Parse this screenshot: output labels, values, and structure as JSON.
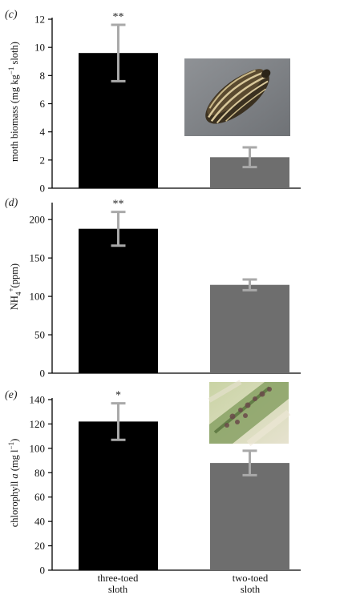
{
  "chart_data": [
    {
      "panel": "(c)",
      "type": "bar",
      "categories": [
        "three-toed sloth",
        "two-toed sloth"
      ],
      "values": [
        9.6,
        2.2
      ],
      "errors": [
        2.0,
        0.7
      ],
      "colors": [
        "#000000",
        "#6e6e6e"
      ],
      "significance": [
        "**",
        ""
      ],
      "ylabel_parts": [
        "moth biomass (mg kg",
        "−1",
        " sloth)"
      ],
      "ylim": [
        0,
        12
      ],
      "yticks": [
        0,
        2,
        4,
        6,
        8,
        10,
        12
      ],
      "inset_image": "moth photograph"
    },
    {
      "panel": "(d)",
      "type": "bar",
      "categories": [
        "three-toed sloth",
        "two-toed sloth"
      ],
      "values": [
        188,
        115
      ],
      "errors": [
        22,
        7
      ],
      "colors": [
        "#000000",
        "#6e6e6e"
      ],
      "significance": [
        "**",
        ""
      ],
      "ylabel_parts": [
        "NH",
        "4",
        "+",
        "(ppm)"
      ],
      "ylim": [
        0,
        220
      ],
      "yticks": [
        0,
        50,
        100,
        150,
        200
      ]
    },
    {
      "panel": "(e)",
      "type": "bar",
      "categories": [
        "three-toed sloth",
        "two-toed sloth"
      ],
      "values": [
        122,
        88
      ],
      "errors": [
        15,
        10
      ],
      "colors": [
        "#000000",
        "#6e6e6e"
      ],
      "significance": [
        "*",
        ""
      ],
      "ylabel_parts": [
        "chlorophyll",
        "a",
        " (mg l",
        "−1",
        ")"
      ],
      "ylim": [
        0,
        140
      ],
      "yticks": [
        0,
        20,
        40,
        60,
        80,
        100,
        120,
        140
      ],
      "inset_image": "algae on sloth hair photograph"
    }
  ],
  "x_labels": [
    {
      "line1": "three-toed",
      "line2": "sloth"
    },
    {
      "line1": "two-toed",
      "line2": "sloth"
    }
  ]
}
